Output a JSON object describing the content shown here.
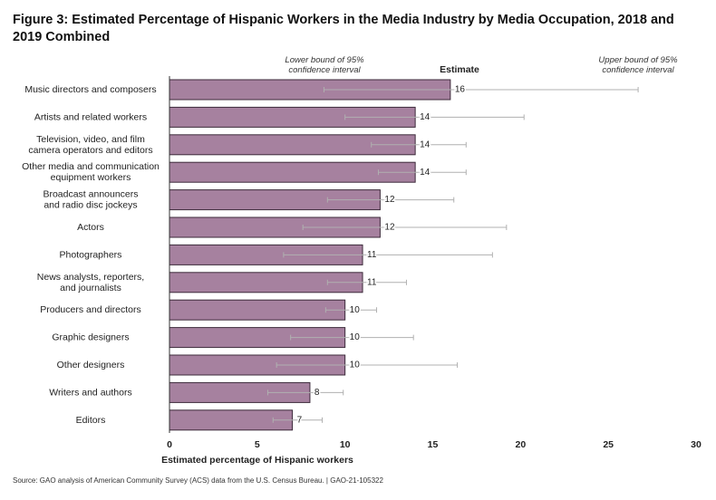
{
  "chart_data": {
    "type": "bar",
    "orientation": "horizontal",
    "title": "Figure 3: Estimated Percentage of Hispanic Workers in the Media Industry by Media Occupation, 2018 and\n2019 Combined",
    "categories": [
      "Music directors and composers",
      "Artists and related workers",
      "Television, video, and film\ncamera operators and editors",
      "Other media and communication\nequipment workers",
      "Broadcast announcers\nand radio disc jockeys",
      "Actors",
      "Photographers",
      "News analysts, reporters,\nand journalists",
      "Producers and directors",
      "Graphic designers",
      "Other designers",
      "Writers and authors",
      "Editors"
    ],
    "values": [
      16,
      14,
      14,
      14,
      12,
      12,
      11,
      11,
      10,
      10,
      10,
      8,
      7
    ],
    "lower": [
      8.8,
      10.0,
      11.5,
      11.9,
      9.0,
      7.6,
      6.5,
      9.0,
      8.9,
      6.9,
      6.1,
      5.6,
      5.9
    ],
    "upper": [
      26.7,
      20.2,
      16.9,
      16.9,
      16.2,
      19.2,
      18.4,
      13.5,
      11.8,
      13.9,
      16.4,
      9.9,
      8.7
    ],
    "color": "#a6819f",
    "edge_color": "#3d2b3b",
    "error_color": "#b0b0b0",
    "xlim": [
      0,
      30
    ],
    "xticks": [
      0,
      5,
      10,
      15,
      20,
      25,
      30
    ],
    "xlabel": "Estimated percentage of Hispanic workers",
    "annotations": {
      "lower": "Lower bound of 95%\nconfidence interval",
      "estimate": "Estimate",
      "upper": "Upper bound of 95%\nconfidence interval"
    },
    "source": "Source: GAO analysis of American Community Survey (ACS) data from the U.S. Census Bureau.  |  GAO-21-105322"
  }
}
